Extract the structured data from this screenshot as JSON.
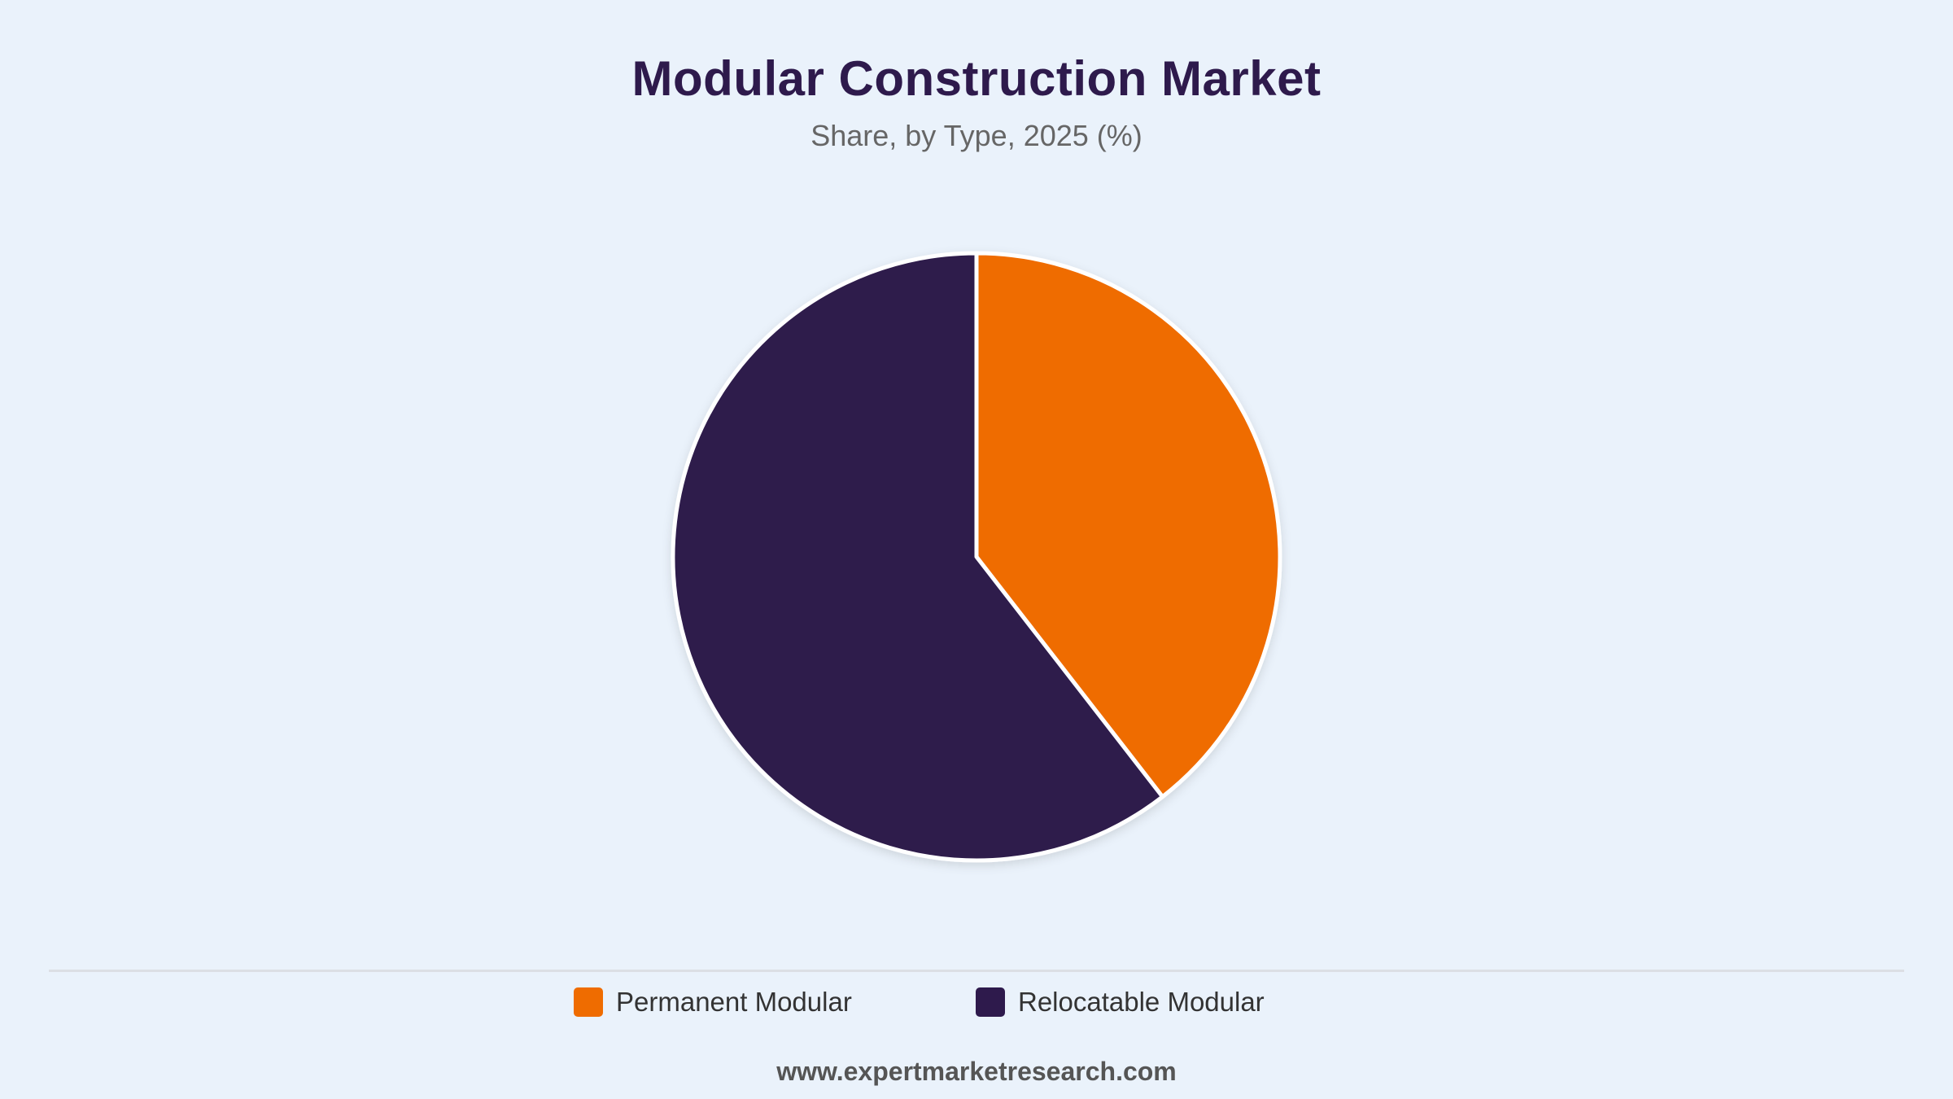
{
  "header": {
    "title": "Modular Construction Market",
    "subtitle": "Share, by Type, 2025 (%)"
  },
  "chart_data": {
    "type": "pie",
    "title": "Modular Construction Market",
    "subtitle": "Share, by Type, 2025 (%)",
    "start_angle_deg": 0,
    "direction": "clockwise",
    "slices": [
      {
        "label": "Permanent Modular",
        "value": 39.5,
        "color": "#EF6C00"
      },
      {
        "label": "Relocatable Modular",
        "value": 60.5,
        "color": "#2E1A4C"
      }
    ],
    "legend_position": "bottom",
    "slice_border_color": "#FFFFFF"
  },
  "legend": {
    "items": [
      {
        "label": "Permanent Modular",
        "color": "#EF6C00"
      },
      {
        "label": "Relocatable Modular",
        "color": "#2E1A4C"
      }
    ]
  },
  "footer": {
    "source": "www.expertmarketresearch.com"
  },
  "colors": {
    "background": "#EAF2FB",
    "title": "#2E1A4C",
    "subtitle": "#666666"
  }
}
